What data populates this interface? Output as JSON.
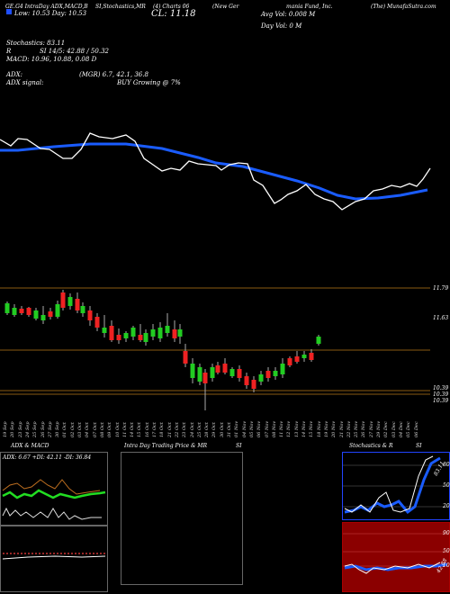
{
  "header": {
    "line1": [
      "GE.G4 IntraDay ADX,MACD,B",
      "SI,Stochastics,MR",
      "(4) Charts 06",
      "(New Ger",
      "mania Fund, Inc.",
      "(The) MunafaSutra.com"
    ],
    "price_low": "Low: 10.53 Day: 10.53",
    "close": "CL: 11.18",
    "avg_vol": "Avg Vol: 0.008  M",
    "day_vol": "Day Vol: 0   M",
    "stoch": "Stochastics: 83.11",
    "r_line": "R",
    "si": "SI 14/5: 42.88 / 50.32",
    "macd": "MACD: 10.96, 10.88, 0.08  D",
    "adx": "ADX:",
    "adx_vals": "(MGR) 6.7, 42.1, 36.8",
    "adx_signal": "ADX  signal:",
    "buy": "BUY Growing @ 7%"
  },
  "price_levels": [
    "11.79",
    "11.63",
    "10.39",
    "10.39",
    "10.39"
  ],
  "dates": [
    "19 Sep",
    "20 Sep",
    "23 Sep",
    "24 Sep",
    "25 Sep",
    "26 Sep",
    "27 Sep",
    "30 Sep",
    "01 Oct",
    "02 Oct",
    "03 Oct",
    "04 Oct",
    "07 Oct",
    "08 Oct",
    "09 Oct",
    "10 Oct",
    "11 Oct",
    "14 Oct",
    "15 Oct",
    "16 Oct",
    "17 Oct",
    "18 Oct",
    "21 Oct",
    "22 Oct",
    "23 Oct",
    "24 Oct",
    "25 Oct",
    "28 Oct",
    "29 Oct",
    "30 Oct",
    "31 Oct",
    "01 Nov",
    "04 Nov",
    "05 Nov",
    "06 Nov",
    "07 Nov",
    "08 Nov",
    "11 Nov",
    "12 Nov",
    "13 Nov",
    "14 Nov",
    "15 Nov",
    "18 Nov",
    "19 Nov",
    "20 Nov",
    "21 Nov",
    "22 Nov",
    "25 Nov",
    "26 Nov",
    "27 Nov",
    "29 Nov",
    "02 Dec",
    "03 Dec",
    "04 Dec",
    "05 Dec",
    "06 Dec"
  ],
  "bottom": {
    "adx_title": "ADX  & MACD",
    "adx_text": "ADX: 6.67  +DI: 42.11  -DI: 36.84",
    "mid_title": "Intra  Day Trading Price  & MR",
    "mid_si": "SI",
    "stoch_title": "Stochastics & R",
    "stoch_si": "SI",
    "stoch_val": "83.11",
    "stoch_levels": [
      "80",
      "50",
      "20"
    ],
    "si_levels": [
      "90",
      "50",
      "10"
    ],
    "si_val": "42.88"
  },
  "colors": {
    "accent": "#1f4fff",
    "up": "#22cc22",
    "down": "#ee2222",
    "ma": "#1a5cff"
  }
}
